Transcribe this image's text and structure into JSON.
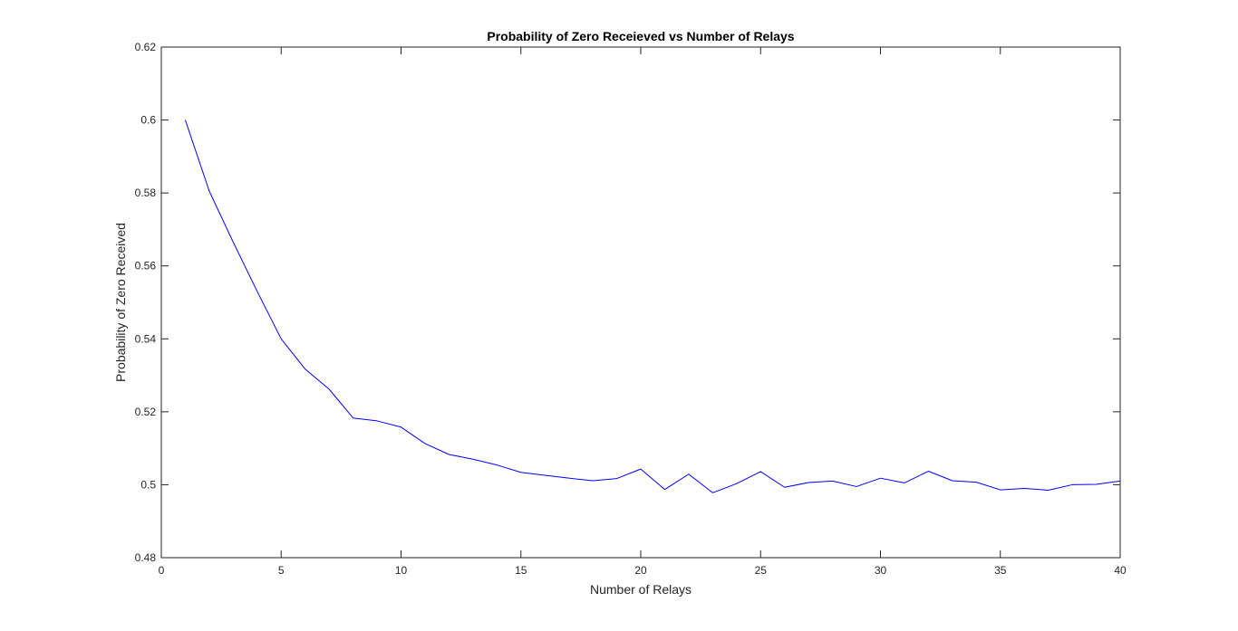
{
  "chart_data": {
    "type": "line",
    "title": "Probability of Zero Receieved vs Number of Relays",
    "xlabel": "Number of Relays",
    "ylabel": "Probability of Zero Received",
    "xlim": [
      0,
      40
    ],
    "ylim": [
      0.48,
      0.62
    ],
    "xticks": [
      0,
      5,
      10,
      15,
      20,
      25,
      30,
      35,
      40
    ],
    "xtick_labels": [
      "0",
      "5",
      "10",
      "15",
      "20",
      "25",
      "30",
      "35",
      "40"
    ],
    "yticks": [
      0.48,
      0.5,
      0.52,
      0.54,
      0.56,
      0.58,
      0.6,
      0.62
    ],
    "ytick_labels": [
      "0.48",
      "0.5",
      "0.52",
      "0.54",
      "0.56",
      "0.58",
      "0.6",
      "0.62"
    ],
    "grid": false,
    "legend": "none",
    "series": [
      {
        "color": "#0000ff",
        "x": [
          1,
          2,
          3,
          4,
          5,
          6,
          7,
          8,
          9,
          10,
          11,
          12,
          13,
          14,
          15,
          16,
          17,
          18,
          19,
          20,
          21,
          22,
          23,
          24,
          25,
          26,
          27,
          28,
          29,
          30,
          31,
          32,
          33,
          34,
          35,
          36,
          37,
          38,
          39,
          40
        ],
        "y": [
          0.6,
          0.5805,
          0.5665,
          0.553,
          0.54,
          0.5317,
          0.5262,
          0.5183,
          0.5175,
          0.5158,
          0.5113,
          0.5083,
          0.507,
          0.5054,
          0.5034,
          0.5026,
          0.5018,
          0.5011,
          0.5017,
          0.5043,
          0.4987,
          0.5029,
          0.4978,
          0.5003,
          0.5036,
          0.4993,
          0.5006,
          0.501,
          0.4995,
          0.5018,
          0.5005,
          0.5037,
          0.5011,
          0.5007,
          0.4986,
          0.499,
          0.4985,
          0.5,
          0.5001,
          0.501
        ]
      }
    ]
  }
}
